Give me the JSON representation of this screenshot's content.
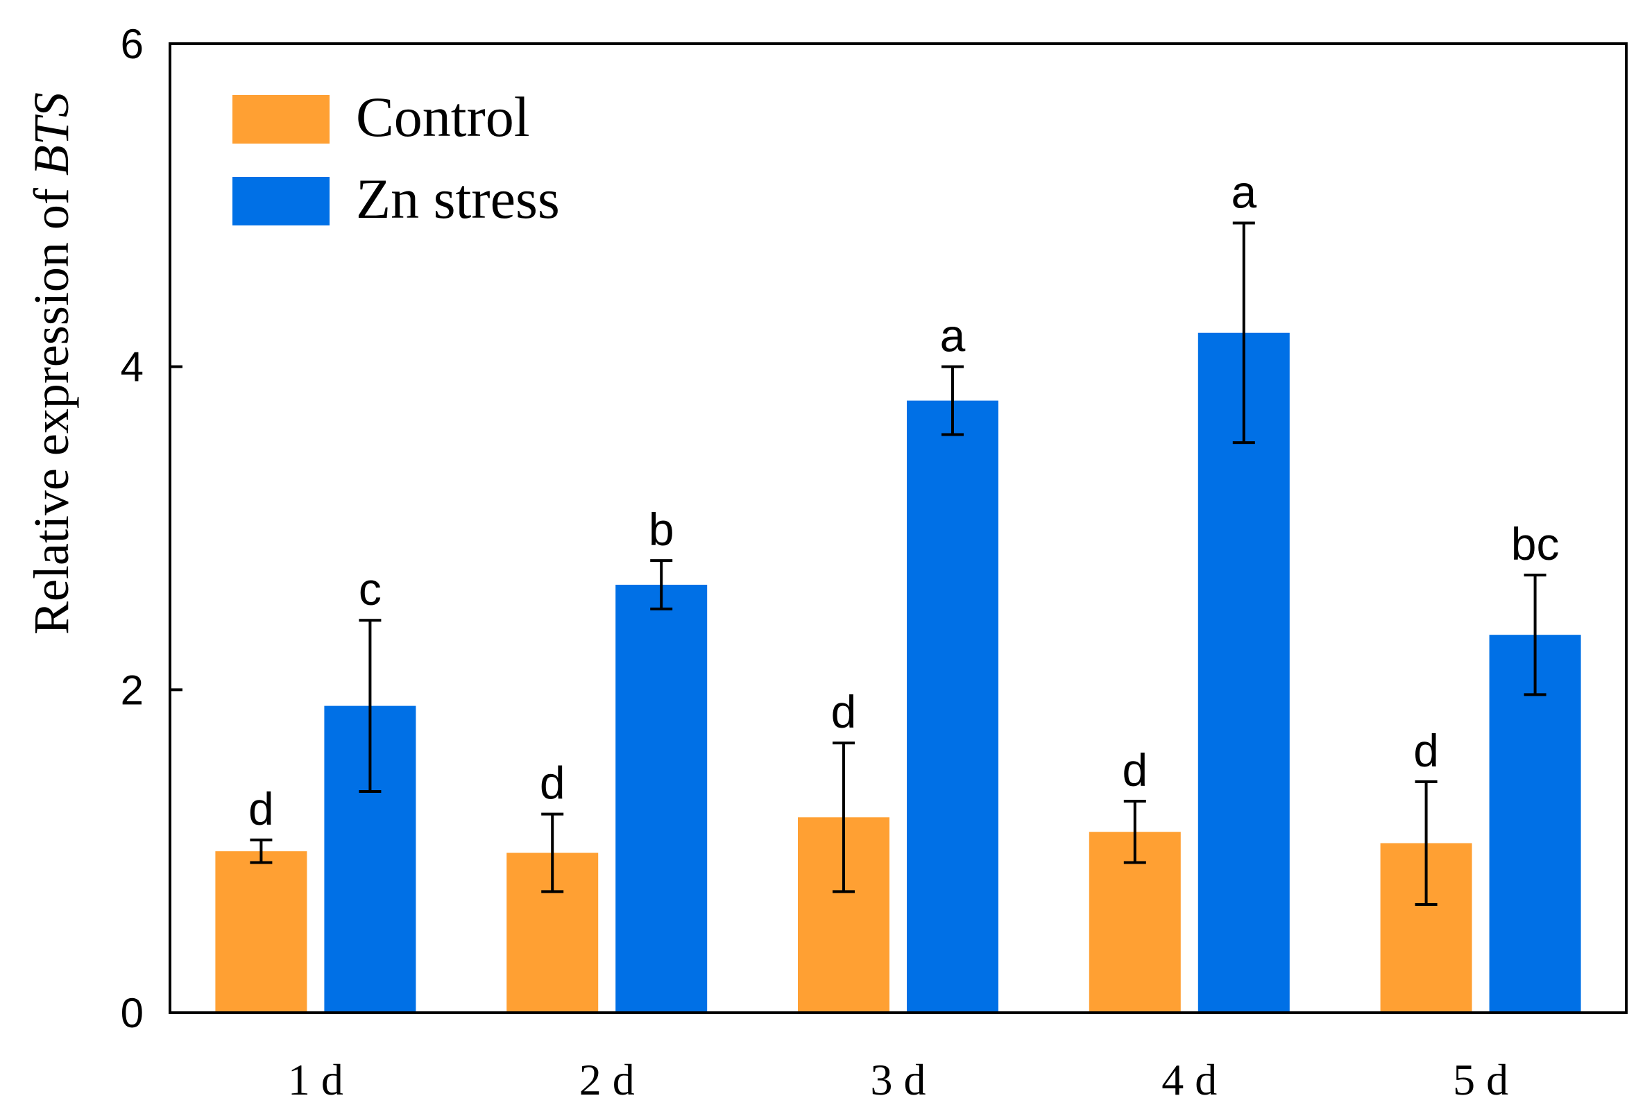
{
  "chart_data": {
    "type": "bar",
    "title": "",
    "xlabel": "",
    "ylabel": "Relative expression of",
    "ylabel_gene": "BTS",
    "ylim": [
      0,
      6
    ],
    "yticks": [
      0,
      2,
      4,
      6
    ],
    "categories": [
      "1 d",
      "2 d",
      "3 d",
      "4 d",
      "5 d"
    ],
    "legend_position": "top-left",
    "series": [
      {
        "name": "Control",
        "color": "#FFA033",
        "values": [
          1.0,
          0.99,
          1.21,
          1.12,
          1.05
        ],
        "errors": [
          0.07,
          0.24,
          0.46,
          0.19,
          0.38
        ],
        "labels": [
          "d",
          "d",
          "d",
          "d",
          "d"
        ]
      },
      {
        "name": "Zn stress",
        "color": "#0070E6",
        "values": [
          1.9,
          2.65,
          3.79,
          4.21,
          2.34
        ],
        "errors": [
          0.53,
          0.15,
          0.21,
          0.68,
          0.37
        ],
        "labels": [
          "c",
          "b",
          "a",
          "a",
          "bc"
        ]
      }
    ]
  }
}
